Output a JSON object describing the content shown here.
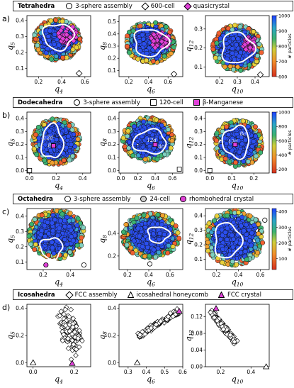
{
  "rows": [
    {
      "letter": "a)",
      "title": "Tetrahedra",
      "legend": [
        {
          "label": "3-sphere assembly",
          "marker": "circle",
          "color": "#ffffff"
        },
        {
          "label": "600-cell",
          "marker": "diamond",
          "color": "#ffffff"
        },
        {
          "label": "quasicrystal",
          "marker": "diamond",
          "color": "#e040d8"
        }
      ],
      "colorbar": {
        "label": "# particles",
        "ticks": [
          "1000",
          "900",
          "800",
          "700",
          "600"
        ],
        "range": [
          600,
          1000
        ]
      }
    },
    {
      "letter": "b)",
      "title": "Dodecahedra",
      "legend": [
        {
          "label": "3-sphere assembly",
          "marker": "circle",
          "color": "#ffffff"
        },
        {
          "label": "120-cell",
          "marker": "square",
          "color": "#ffffff"
        },
        {
          "label": "β-Manganese",
          "marker": "square",
          "color": "#e040d8"
        }
      ],
      "colorbar": {
        "label": "# particles",
        "ticks": [
          "1000",
          "800",
          "600",
          "400",
          "200"
        ],
        "range": [
          150,
          1000
        ]
      }
    },
    {
      "letter": "c)",
      "title": "Octahedra",
      "legend": [
        {
          "label": "3-sphere assembly",
          "marker": "circle",
          "color": "#ffffff"
        },
        {
          "label": "24-cell",
          "marker": "circle",
          "color": "#cfcfcf"
        },
        {
          "label": "rhombohedral crystal",
          "marker": "circle",
          "color": "#e040d8"
        }
      ],
      "colorbar": {
        "label": "# particles",
        "ticks": [
          "400",
          "300",
          "200",
          "100"
        ],
        "range": [
          30,
          420
        ]
      }
    },
    {
      "letter": "d)",
      "title": "Icosahedra",
      "legend": [
        {
          "label": "FCC assembly",
          "marker": "diamond",
          "color": "#ffffff"
        },
        {
          "label": "icosahedral honeycomb",
          "marker": "triangle",
          "color": "#ffffff"
        },
        {
          "label": "FCC crystal",
          "marker": "triangle",
          "color": "#e040d8"
        }
      ],
      "colorbar": null
    }
  ],
  "chart_data": [
    {
      "type": "scatter",
      "row": 0,
      "xlabel": "q4",
      "ylabel": "q5",
      "xticks": [
        "0.2",
        "0.4",
        "0.6"
      ],
      "yticks": [
        "0.1",
        "0.2",
        "0.3",
        "0.4"
      ],
      "xlim": [
        0.1,
        0.65
      ],
      "ylim": [
        0.05,
        0.43
      ],
      "cloud": {
        "cx": 0.36,
        "cy": 0.28,
        "rx": 0.2,
        "ry": 0.13
      },
      "contour": {
        "cx": 0.37,
        "cy": 0.3,
        "rx": 0.13,
        "ry": 0.08
      },
      "crystal": {
        "cx": 0.45,
        "cy": 0.31,
        "rx": 0.08,
        "ry": 0.06
      },
      "ideal": {
        "x": 0.55,
        "y": 0.07
      }
    },
    {
      "type": "scatter",
      "row": 0,
      "xlabel": "q6",
      "ylabel": "q8",
      "xticks": [
        "0.2",
        "0.4",
        "0.6"
      ],
      "yticks": [
        "0.1",
        "0.2",
        "0.3",
        "0.4",
        "0.5"
      ],
      "xlim": [
        0.1,
        0.75
      ],
      "ylim": [
        0.05,
        0.55
      ],
      "cloud": {
        "cx": 0.42,
        "cy": 0.33,
        "rx": 0.25,
        "ry": 0.17
      },
      "contour": {
        "cx": 0.42,
        "cy": 0.33,
        "rx": 0.17,
        "ry": 0.11
      },
      "crystal": {
        "cx": 0.52,
        "cy": 0.35,
        "rx": 0.1,
        "ry": 0.08
      },
      "ideal": {
        "x": 0.66,
        "y": 0.07
      }
    },
    {
      "type": "scatter",
      "row": 0,
      "xlabel": "q10",
      "ylabel": "q12",
      "xticks": [
        "0.2",
        "0.3",
        "0.4"
      ],
      "yticks": [
        "0.1",
        "0.2",
        "0.3"
      ],
      "xlim": [
        0.12,
        0.48
      ],
      "ylim": [
        0.05,
        0.37
      ],
      "cloud": {
        "cx": 0.3,
        "cy": 0.2,
        "rx": 0.14,
        "ry": 0.12
      },
      "contour": {
        "cx": 0.3,
        "cy": 0.2,
        "rx": 0.09,
        "ry": 0.08
      },
      "crystal": {
        "cx": 0.37,
        "cy": 0.22,
        "rx": 0.04,
        "ry": 0.04
      },
      "ideal": {
        "x": 0.43,
        "y": 0.06
      }
    },
    {
      "type": "scatter",
      "row": 1,
      "xlabel": "q4",
      "ylabel": "q5",
      "xticks": [
        "0.0",
        "0.2",
        "0.4"
      ],
      "yticks": [
        "0.0",
        "0.1",
        "0.2",
        "0.3",
        "0.4"
      ],
      "xlim": [
        -0.02,
        0.46
      ],
      "ylim": [
        -0.02,
        0.45
      ],
      "cloud": {
        "cx": 0.2,
        "cy": 0.22,
        "rx": 0.18,
        "ry": 0.18
      },
      "contour": {
        "cx": 0.17,
        "cy": 0.22,
        "rx": 0.08,
        "ry": 0.13
      },
      "crystal": null,
      "ideal": {
        "x": 0.0,
        "y": 0.0
      },
      "annot": [
        {
          "t": "12d",
          "x": 0.14,
          "y": 0.24
        },
        {
          "t": "8c",
          "x": 0.16,
          "y": 0.18
        }
      ]
    },
    {
      "type": "scatter",
      "row": 1,
      "xlabel": "q6",
      "ylabel": "q8",
      "xticks": [
        "0.0",
        "0.2",
        "0.4",
        "0.6"
      ],
      "yticks": [
        "0.0",
        "0.1",
        "0.2",
        "0.3",
        "0.4"
      ],
      "xlim": [
        -0.02,
        0.72
      ],
      "ylim": [
        -0.02,
        0.45
      ],
      "cloud": {
        "cx": 0.32,
        "cy": 0.24,
        "rx": 0.3,
        "ry": 0.17
      },
      "contour": {
        "cx": 0.34,
        "cy": 0.22,
        "rx": 0.19,
        "ry": 0.09
      },
      "crystal": null,
      "ideal": {
        "x": 0.68,
        "y": 0.01
      },
      "annot": [
        {
          "t": "12d",
          "x": 0.36,
          "y": 0.22
        },
        {
          "t": "8c",
          "x": 0.47,
          "y": 0.17
        }
      ]
    },
    {
      "type": "scatter",
      "row": 1,
      "xlabel": "q10",
      "ylabel": "q12",
      "xticks": [
        "0.0",
        "0.1",
        "0.2"
      ],
      "yticks": [
        "0.0",
        "0.1",
        "0.2",
        "0.3",
        "0.4"
      ],
      "xlim": [
        -0.02,
        0.27
      ],
      "ylim": [
        -0.02,
        0.45
      ],
      "cloud": {
        "cx": 0.13,
        "cy": 0.21,
        "rx": 0.11,
        "ry": 0.18
      },
      "contour": {
        "cx": 0.12,
        "cy": 0.22,
        "rx": 0.06,
        "ry": 0.12
      },
      "crystal": null,
      "ideal": {
        "x": 0.0,
        "y": 0.0
      },
      "annot": [
        {
          "t": "12d",
          "x": 0.105,
          "y": 0.21
        },
        {
          "t": "8c",
          "x": 0.15,
          "y": 0.27
        }
      ]
    },
    {
      "type": "scatter",
      "row": 2,
      "xlabel": "q4",
      "ylabel": "q5",
      "xticks": [
        "0.2",
        "0.4"
      ],
      "yticks": [
        "0.1",
        "0.2",
        "0.3",
        "0.4"
      ],
      "xlim": [
        0.08,
        0.55
      ],
      "ylim": [
        0.05,
        0.45
      ],
      "cloud": {
        "cx": 0.3,
        "cy": 0.28,
        "rx": 0.21,
        "ry": 0.16
      },
      "contour": {
        "cx": 0.26,
        "cy": 0.19,
        "rx": 0.08,
        "ry": 0.07
      },
      "crystal": {
        "cx": 0.22,
        "cy": 0.08,
        "rx": 0.0,
        "ry": 0.0
      },
      "ideal": {
        "x": 0.5,
        "y": 0.08
      }
    },
    {
      "type": "scatter",
      "row": 2,
      "xlabel": "q6",
      "ylabel": "q8",
      "xticks": [
        "0.2",
        "0.4",
        "0.6"
      ],
      "yticks": [
        "0.2",
        "0.4"
      ],
      "xlim": [
        0.12,
        0.72
      ],
      "ylim": [
        0.08,
        0.62
      ],
      "cloud": {
        "cx": 0.42,
        "cy": 0.38,
        "rx": 0.27,
        "ry": 0.2
      },
      "contour": {
        "cx": 0.49,
        "cy": 0.39,
        "rx": 0.1,
        "ry": 0.07
      },
      "crystal": null,
      "ideal": {
        "x": 0.41,
        "y": 0.13
      }
    },
    {
      "type": "scatter",
      "row": 2,
      "xlabel": "q10",
      "ylabel": "q12",
      "xticks": [
        "0.2",
        "0.4",
        "0.6"
      ],
      "yticks": [
        "0.1",
        "0.2",
        "0.3",
        "0.4"
      ],
      "xlim": [
        0.1,
        0.68
      ],
      "ylim": [
        0.03,
        0.45
      ],
      "cloud": {
        "cx": 0.36,
        "cy": 0.25,
        "rx": 0.27,
        "ry": 0.19
      },
      "contour": {
        "cx": 0.3,
        "cy": 0.23,
        "rx": 0.12,
        "ry": 0.12
      },
      "crystal": null,
      "ideal": {
        "x": 0.64,
        "y": 0.37
      }
    },
    {
      "type": "scatter",
      "row": 3,
      "xlabel": "q4",
      "ylabel": "q5",
      "xticks": [
        "0.0",
        "0.2"
      ],
      "yticks": [
        "0.0",
        "0.2",
        "0.4"
      ],
      "xlim": [
        -0.03,
        0.28
      ],
      "ylim": [
        -0.03,
        0.43
      ],
      "cloud": {
        "cx": 0.185,
        "cy": 0.22,
        "rx": 0.06,
        "ry": 0.17
      },
      "contour": null,
      "crystal": {
        "cx": 0.19,
        "cy": -0.005,
        "rx": 0,
        "ry": 0
      },
      "ideal": {
        "x": 0.0,
        "y": 0.0
      }
    },
    {
      "type": "scatter",
      "row": 3,
      "xlabel": "q6",
      "ylabel": "q8",
      "xticks": [
        "0.3",
        "0.4",
        "0.5",
        "0.6"
      ],
      "yticks": [
        "0.0",
        "0.2",
        "0.4"
      ],
      "xlim": [
        0.25,
        0.6
      ],
      "ylim": [
        -0.03,
        0.43
      ],
      "cloud": {
        "cx": 0.47,
        "cy": 0.3,
        "rx": 0.11,
        "ry": 0.08
      },
      "contour": null,
      "crystal": {
        "cx": 0.58,
        "cy": 0.38,
        "rx": 0,
        "ry": 0
      },
      "ideal": {
        "x": 0.35,
        "y": 0.0
      }
    },
    {
      "type": "scatter",
      "row": 3,
      "xlabel": "q10",
      "ylabel": "q12",
      "xticks": [
        "0.2",
        "0.4"
      ],
      "yticks": [
        "0.00",
        "0.04",
        "0.08",
        "0.12"
      ],
      "xlim": [
        0.1,
        0.52
      ],
      "ylim": [
        0.0,
        0.15
      ],
      "cloud": {
        "cx": 0.23,
        "cy": 0.09,
        "rx": 0.1,
        "ry": 0.04
      },
      "contour": null,
      "crystal": {
        "cx": 0.17,
        "cy": 0.14,
        "rx": 0,
        "ry": 0
      },
      "ideal": {
        "x": 0.5,
        "y": 0.0
      }
    }
  ]
}
